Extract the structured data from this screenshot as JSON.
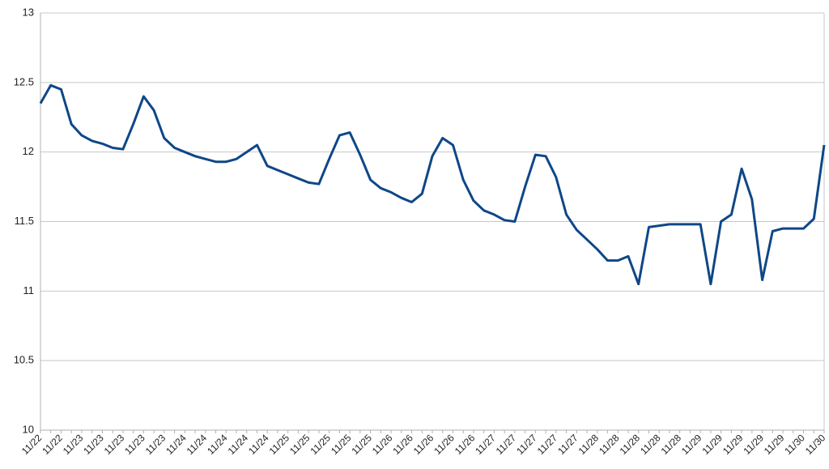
{
  "chart_data": {
    "type": "line",
    "categories": [
      "11/22",
      null,
      "11/22",
      null,
      "11/23",
      null,
      "11/23",
      null,
      "11/23",
      null,
      "11/23",
      null,
      "11/23",
      null,
      "11/24",
      null,
      "11/24",
      null,
      "11/24",
      null,
      "11/24",
      null,
      "11/24",
      null,
      "11/25",
      null,
      "11/25",
      null,
      "11/25",
      null,
      "11/25",
      null,
      "11/25",
      null,
      "11/26",
      null,
      "11/26",
      null,
      "11/26",
      null,
      "11/26",
      null,
      "11/26",
      null,
      "11/27",
      null,
      "11/27",
      null,
      "11/27",
      null,
      "11/27",
      null,
      "11/27",
      null,
      "11/28",
      null,
      "11/28",
      null,
      "11/28",
      null,
      "11/28",
      null,
      "11/28",
      null,
      "11/29",
      null,
      "11/29",
      null,
      "11/29",
      null,
      "11/29",
      null,
      "11/29",
      null,
      "11/30",
      null,
      "11/30"
    ],
    "series": [
      {
        "color": "#0e4787",
        "values": [
          12.35,
          12.48,
          12.45,
          12.2,
          12.12,
          12.08,
          12.06,
          12.03,
          12.02,
          12.2,
          12.4,
          12.3,
          12.1,
          12.03,
          12.0,
          11.97,
          11.95,
          11.93,
          11.93,
          11.95,
          12.0,
          12.05,
          11.9,
          11.87,
          11.84,
          11.81,
          11.78,
          11.77,
          11.95,
          12.12,
          12.14,
          11.98,
          11.8,
          11.74,
          11.71,
          11.67,
          11.64,
          11.7,
          11.97,
          12.1,
          12.05,
          11.8,
          11.65,
          11.58,
          11.55,
          11.51,
          11.5,
          11.75,
          11.98,
          11.97,
          11.82,
          11.55,
          11.44,
          11.37,
          11.3,
          11.22,
          11.22,
          11.25,
          11.05,
          11.46,
          11.47,
          11.48,
          11.48,
          11.48,
          11.48,
          11.05,
          11.5,
          11.55,
          11.88,
          11.66,
          11.08,
          11.43,
          11.45,
          11.45,
          11.45,
          11.52,
          12.05
        ]
      }
    ],
    "ylim": [
      10,
      13
    ],
    "yticks": [
      10,
      10.5,
      11,
      11.5,
      12,
      12.5,
      13
    ],
    "grid": true
  }
}
